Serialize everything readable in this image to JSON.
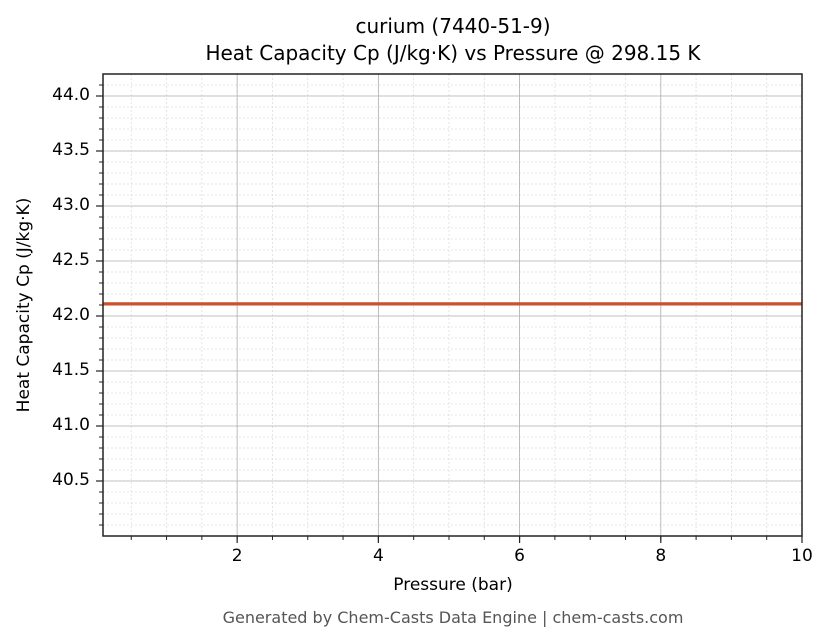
{
  "chart_data": {
    "type": "line",
    "title": "curium (7440-51-9)",
    "subtitle": "Heat Capacity Cp (J/kg·K) vs Pressure @ 298.15 K",
    "xlabel": "Pressure (bar)",
    "ylabel": "Heat Capacity Cp (J/kg·K)",
    "xlim": [
      0.1,
      10
    ],
    "ylim": [
      40.0,
      44.2
    ],
    "x_ticks": [
      2,
      4,
      6,
      8,
      10
    ],
    "x_tick_labels": [
      "2",
      "4",
      "6",
      "8",
      "10"
    ],
    "y_ticks": [
      40.5,
      41.0,
      41.5,
      42.0,
      42.5,
      43.0,
      43.5,
      44.0
    ],
    "y_tick_labels": [
      "40.5",
      "41.0",
      "41.5",
      "42.0",
      "42.5",
      "43.0",
      "43.5",
      "44.0"
    ],
    "grid": true,
    "minor_grid": true,
    "legend": null,
    "series": [
      {
        "name": "Heat Capacity Cp",
        "color": "#C8522A",
        "x": [
          0.1,
          1,
          2,
          3,
          4,
          5,
          6,
          7,
          8,
          9,
          10
        ],
        "values": [
          42.11,
          42.11,
          42.11,
          42.11,
          42.11,
          42.11,
          42.11,
          42.11,
          42.11,
          42.11,
          42.11
        ]
      }
    ]
  },
  "footer": "Generated by Chem-Casts Data Engine | chem-casts.com",
  "colors": {
    "line": "#C8522A",
    "major_grid": "#b0b0b0",
    "minor_grid": "#dddddd",
    "axis": "#222222"
  }
}
